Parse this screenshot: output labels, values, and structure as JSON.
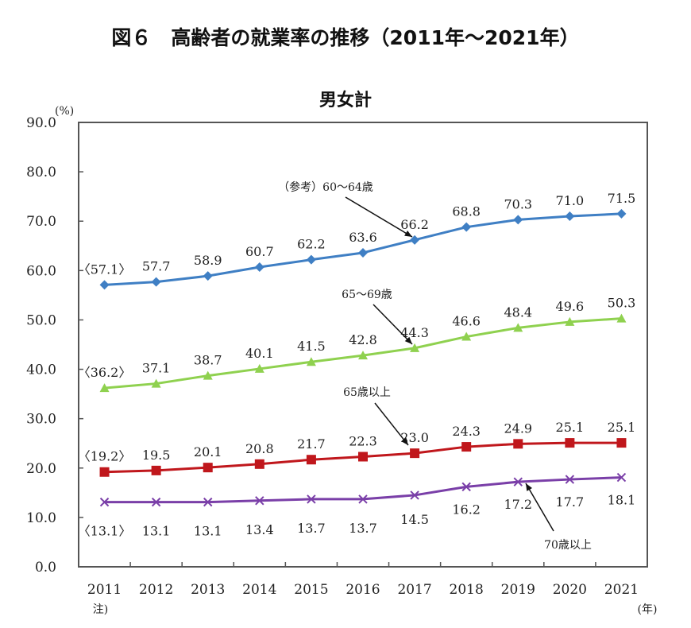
{
  "chart_data": {
    "type": "line",
    "title": "図６　高齢者の就業率の推移（2011年～2021年）",
    "subtitle": "男女計",
    "ylabel": "(%)",
    "xunit": "(年)",
    "x_note": "注)",
    "ylim": [
      0,
      90
    ],
    "yticks": [
      "0.0",
      "10.0",
      "20.0",
      "30.0",
      "40.0",
      "50.0",
      "60.0",
      "70.0",
      "80.0",
      "90.0"
    ],
    "categories": [
      "2011",
      "2012",
      "2013",
      "2014",
      "2015",
      "2016",
      "2017",
      "2018",
      "2019",
      "2020",
      "2021"
    ],
    "grid": false,
    "series": [
      {
        "name": "（参考）60～64歳",
        "color": "#3f7fc4",
        "marker": "diamond",
        "label_pos": "above",
        "values": [
          57.1,
          57.7,
          58.9,
          60.7,
          62.2,
          63.6,
          66.2,
          68.8,
          70.3,
          71.0,
          71.5
        ],
        "labels": [
          "〈57.1〉",
          "57.7",
          "58.9",
          "60.7",
          "62.2",
          "63.6",
          "66.2",
          "68.8",
          "70.3",
          "71.0",
          "71.5"
        ]
      },
      {
        "name": "65～69歳",
        "color": "#8fd14f",
        "marker": "triangle",
        "label_pos": "above",
        "values": [
          36.2,
          37.1,
          38.7,
          40.1,
          41.5,
          42.8,
          44.3,
          46.6,
          48.4,
          49.6,
          50.3
        ],
        "labels": [
          "〈36.2〉",
          "37.1",
          "38.7",
          "40.1",
          "41.5",
          "42.8",
          "44.3",
          "46.6",
          "48.4",
          "49.6",
          "50.3"
        ]
      },
      {
        "name": "65歳以上",
        "color": "#c0171c",
        "marker": "square",
        "label_pos": "above",
        "values": [
          19.2,
          19.5,
          20.1,
          20.8,
          21.7,
          22.3,
          23.0,
          24.3,
          24.9,
          25.1,
          25.1
        ],
        "labels": [
          "〈19.2〉",
          "19.5",
          "20.1",
          "20.8",
          "21.7",
          "22.3",
          "23.0",
          "24.3",
          "24.9",
          "25.1",
          "25.1"
        ]
      },
      {
        "name": "70歳以上",
        "color": "#7a3fa8",
        "marker": "x",
        "label_pos": "below",
        "values": [
          13.1,
          13.1,
          13.1,
          13.4,
          13.7,
          13.7,
          14.5,
          16.2,
          17.2,
          17.7,
          18.1
        ],
        "labels": [
          "〈13.1〉",
          "13.1",
          "13.1",
          "13.4",
          "13.7",
          "13.7",
          "14.5",
          "16.2",
          "17.2",
          "17.7",
          "18.1"
        ]
      }
    ]
  }
}
